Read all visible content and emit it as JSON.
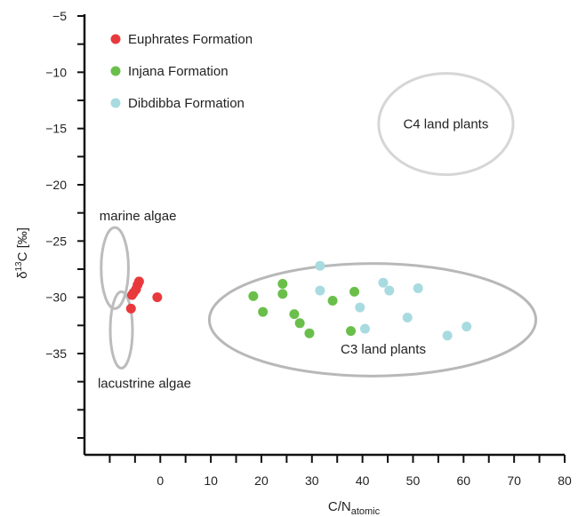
{
  "chart_data": {
    "type": "scatter",
    "xlabel": "C/N",
    "xlabel_sub": "atomic",
    "ylabel_prefix": "δ",
    "ylabel_sup": "13",
    "ylabel_suffix": "C [‰]",
    "xlim": [
      -15,
      80
    ],
    "ylim": [
      -5,
      -44
    ],
    "x_ticks": [
      0,
      10,
      20,
      30,
      40,
      50,
      60,
      70,
      80
    ],
    "x_tick_labels": [
      "0",
      "10",
      "20",
      "30",
      "40",
      "50",
      "60",
      "70",
      "80"
    ],
    "x_minor_ticks": [
      -10,
      -5,
      5,
      15,
      25,
      35,
      45,
      55,
      65,
      75
    ],
    "y_ticks": [
      -5,
      -10,
      -15,
      -20,
      -25,
      -30,
      -35
    ],
    "y_tick_labels": [
      "−5",
      "−10",
      "−15",
      "−20",
      "−25",
      "−30",
      "−35"
    ],
    "y_minor_ticks": [
      -7.5,
      -12.5,
      -17.5,
      -22.5,
      -27.5,
      -32.5,
      -37.5,
      -40,
      -42.5
    ],
    "grid": false,
    "legend_position": "top-left",
    "series": [
      {
        "name": "Euphrates Formation",
        "color": "#e8393d",
        "points": [
          [
            -4.2,
            -28.6
          ],
          [
            -4.5,
            -28.9
          ],
          [
            -4.8,
            -29.3
          ],
          [
            -5.3,
            -29.6
          ],
          [
            -5.6,
            -29.8
          ],
          [
            -5.8,
            -31.0
          ],
          [
            -0.6,
            -30.0
          ]
        ]
      },
      {
        "name": "Injana Formation",
        "color": "#6abf4b",
        "points": [
          [
            18.4,
            -29.9
          ],
          [
            20.3,
            -31.3
          ],
          [
            24.2,
            -28.8
          ],
          [
            24.2,
            -29.7
          ],
          [
            26.5,
            -31.5
          ],
          [
            27.6,
            -32.3
          ],
          [
            29.5,
            -33.2
          ],
          [
            34.1,
            -30.3
          ],
          [
            37.7,
            -33.0
          ],
          [
            38.4,
            -29.5
          ]
        ]
      },
      {
        "name": "Dibdibba Formation",
        "color": "#a8dbdf",
        "points": [
          [
            31.6,
            -27.2
          ],
          [
            31.6,
            -29.4
          ],
          [
            39.5,
            -30.9
          ],
          [
            40.5,
            -32.8
          ],
          [
            44.1,
            -28.7
          ],
          [
            45.3,
            -29.4
          ],
          [
            48.9,
            -31.8
          ],
          [
            51.0,
            -29.2
          ],
          [
            56.8,
            -33.4
          ],
          [
            60.6,
            -32.6
          ]
        ]
      }
    ],
    "regions": [
      {
        "label": "C4 land plants",
        "cx": 56.5,
        "cy": -14.6,
        "rx": 13.3,
        "ry": 4.5,
        "color": "#d6d6d6",
        "label_pos": "center"
      },
      {
        "label": "C3 land plants",
        "cx": 42.0,
        "cy": -32.0,
        "rx": 32.3,
        "ry": 5.0,
        "color": "#b8b8b8",
        "label_pos": "lower"
      },
      {
        "label": "marine algae",
        "cx": -9.0,
        "cy": -27.4,
        "rx": 2.7,
        "ry": 3.6,
        "color": "#bcbcbc",
        "label_pos": "above"
      },
      {
        "label": "lacustrine algae",
        "cx": -7.7,
        "cy": -32.9,
        "rx": 2.2,
        "ry": 3.4,
        "color": "#bcbcbc",
        "label_pos": "below"
      }
    ]
  }
}
